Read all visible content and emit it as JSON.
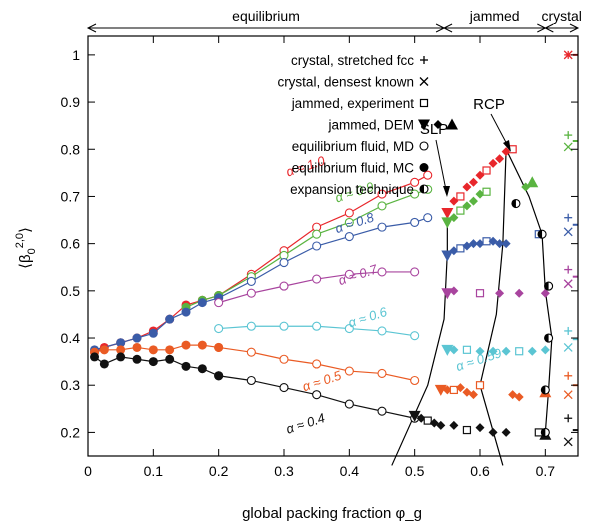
{
  "chart_data": {
    "type": "scatter",
    "title": "",
    "xlabel": "global packing fraction φ_g",
    "ylabel": "⟨β₀^(2,0)⟩",
    "xlim": [
      0,
      0.75
    ],
    "ylim": [
      0.15,
      1.04
    ],
    "xticks": [
      0,
      0.1,
      0.2,
      0.3,
      0.4,
      0.5,
      0.6,
      0.7
    ],
    "xtick_labels": [
      "0",
      "0.1",
      "0.2",
      "0.3",
      "0.4",
      "0.5",
      "0.6",
      "0.7"
    ],
    "yticks": [
      0.2,
      0.3,
      0.4,
      0.5,
      0.6,
      0.7,
      0.8,
      0.9,
      1
    ],
    "ytick_labels": [
      "0.2",
      "0.3",
      "0.4",
      "0.5",
      "0.6",
      "0.7",
      "0.8",
      "0.9",
      "1"
    ],
    "regions": [
      {
        "label": "equilibrium",
        "from": 0,
        "to": 0.545
      },
      {
        "label": "jammed",
        "from": 0.545,
        "to": 0.7
      },
      {
        "label": "crystal",
        "from": 0.7,
        "to": 0.75
      }
    ],
    "legend": [
      {
        "label": "crystal, stretched fcc",
        "symbol": "+"
      },
      {
        "label": "crystal, densest known",
        "symbol": "×"
      },
      {
        "label": "jammed, experiment",
        "symbol": "□"
      },
      {
        "label": "jammed, DEM",
        "symbol": "▼◆▲"
      },
      {
        "label": "equilibrium fluid, MD",
        "symbol": "○"
      },
      {
        "label": "equilibrium fluid, MC",
        "symbol": "●"
      },
      {
        "label": "expansion technique",
        "symbol": "◐"
      }
    ],
    "annotations": [
      "SLP",
      "RCP"
    ],
    "series": [
      {
        "name": "α ≈ 1.0",
        "color": "#e8262b",
        "mc": [
          [
            0.01,
            0.37
          ],
          [
            0.025,
            0.38
          ],
          [
            0.05,
            0.39
          ],
          [
            0.075,
            0.4
          ],
          [
            0.1,
            0.415
          ],
          [
            0.125,
            0.44
          ],
          [
            0.15,
            0.47
          ],
          [
            0.175,
            0.48
          ],
          [
            0.2,
            0.49
          ]
        ],
        "md": [
          [
            0.2,
            0.49
          ],
          [
            0.25,
            0.535
          ],
          [
            0.3,
            0.585
          ],
          [
            0.35,
            0.635
          ],
          [
            0.4,
            0.665
          ],
          [
            0.45,
            0.705
          ],
          [
            0.5,
            0.73
          ],
          [
            0.52,
            0.745
          ]
        ],
        "jammed": [
          [
            0.55,
            0.665
          ],
          [
            0.56,
            0.69
          ],
          [
            0.57,
            0.7
          ],
          [
            0.58,
            0.72
          ],
          [
            0.59,
            0.73
          ],
          [
            0.6,
            0.745
          ],
          [
            0.61,
            0.755
          ],
          [
            0.62,
            0.77
          ],
          [
            0.63,
            0.78
          ],
          [
            0.64,
            0.795
          ],
          [
            0.65,
            0.8
          ]
        ],
        "crystal_plus": 1.0,
        "crystal_x": 1.0
      },
      {
        "name": "α ≈ 0.9",
        "color": "#5ab441",
        "mc": [
          [
            0.15,
            0.465
          ],
          [
            0.175,
            0.48
          ],
          [
            0.2,
            0.49
          ]
        ],
        "md": [
          [
            0.2,
            0.49
          ],
          [
            0.25,
            0.53
          ],
          [
            0.3,
            0.575
          ],
          [
            0.35,
            0.62
          ],
          [
            0.4,
            0.645
          ],
          [
            0.45,
            0.68
          ],
          [
            0.5,
            0.705
          ],
          [
            0.52,
            0.715
          ]
        ],
        "jammed": [
          [
            0.55,
            0.645
          ],
          [
            0.56,
            0.655
          ],
          [
            0.57,
            0.67
          ],
          [
            0.58,
            0.68
          ],
          [
            0.59,
            0.69
          ],
          [
            0.6,
            0.705
          ],
          [
            0.61,
            0.71
          ],
          [
            0.67,
            0.72
          ],
          [
            0.68,
            0.73
          ]
        ],
        "crystal_plus": 0.83,
        "crystal_x": 0.805
      },
      {
        "name": "α ≈ 0.8",
        "color": "#3a5ca8",
        "mc": [
          [
            0.01,
            0.375
          ],
          [
            0.05,
            0.39
          ],
          [
            0.075,
            0.4
          ],
          [
            0.1,
            0.41
          ],
          [
            0.125,
            0.44
          ],
          [
            0.15,
            0.455
          ],
          [
            0.175,
            0.475
          ],
          [
            0.2,
            0.485
          ]
        ],
        "md": [
          [
            0.2,
            0.485
          ],
          [
            0.25,
            0.52
          ],
          [
            0.3,
            0.56
          ],
          [
            0.35,
            0.595
          ],
          [
            0.4,
            0.615
          ],
          [
            0.45,
            0.635
          ],
          [
            0.5,
            0.645
          ],
          [
            0.52,
            0.655
          ]
        ],
        "jammed": [
          [
            0.55,
            0.575
          ],
          [
            0.56,
            0.585
          ],
          [
            0.57,
            0.59
          ],
          [
            0.58,
            0.595
          ],
          [
            0.59,
            0.6
          ],
          [
            0.6,
            0.6
          ],
          [
            0.61,
            0.605
          ],
          [
            0.62,
            0.605
          ],
          [
            0.63,
            0.6
          ],
          [
            0.64,
            0.6
          ],
          [
            0.69,
            0.62
          ]
        ],
        "crystal_plus": 0.655,
        "crystal_x": 0.625
      },
      {
        "name": "α ≈ 0.7",
        "color": "#a8449e",
        "md": [
          [
            0.2,
            0.475
          ],
          [
            0.25,
            0.495
          ],
          [
            0.3,
            0.51
          ],
          [
            0.35,
            0.525
          ],
          [
            0.4,
            0.535
          ],
          [
            0.45,
            0.54
          ],
          [
            0.5,
            0.54
          ]
        ],
        "jammed": [
          [
            0.55,
            0.495
          ],
          [
            0.56,
            0.5
          ],
          [
            0.6,
            0.495
          ],
          [
            0.63,
            0.495
          ],
          [
            0.66,
            0.495
          ],
          [
            0.7,
            0.495
          ]
        ],
        "crystal_plus": 0.545,
        "crystal_x": 0.515
      },
      {
        "name": "α ≈ 0.6",
        "color": "#5bc5d3",
        "md": [
          [
            0.2,
            0.42
          ],
          [
            0.25,
            0.425
          ],
          [
            0.3,
            0.425
          ],
          [
            0.35,
            0.425
          ],
          [
            0.4,
            0.42
          ],
          [
            0.45,
            0.415
          ],
          [
            0.5,
            0.405
          ]
        ],
        "jammed": [
          [
            0.55,
            0.375
          ],
          [
            0.56,
            0.375
          ],
          [
            0.58,
            0.375
          ],
          [
            0.6,
            0.372
          ],
          [
            0.62,
            0.372
          ],
          [
            0.64,
            0.372
          ],
          [
            0.66,
            0.372
          ],
          [
            0.68,
            0.372
          ],
          [
            0.7,
            0.375
          ]
        ],
        "crystal_plus": 0.415,
        "crystal_x": 0.38
      },
      {
        "name": "α ≈ 0.5",
        "color": "#ea5b24",
        "mc": [
          [
            0.01,
            0.37
          ],
          [
            0.025,
            0.375
          ],
          [
            0.05,
            0.375
          ],
          [
            0.075,
            0.38
          ],
          [
            0.1,
            0.375
          ],
          [
            0.125,
            0.375
          ],
          [
            0.15,
            0.385
          ],
          [
            0.175,
            0.385
          ],
          [
            0.2,
            0.38
          ]
        ],
        "md": [
          [
            0.2,
            0.38
          ],
          [
            0.25,
            0.37
          ],
          [
            0.3,
            0.355
          ],
          [
            0.35,
            0.345
          ],
          [
            0.4,
            0.33
          ],
          [
            0.45,
            0.325
          ],
          [
            0.5,
            0.31
          ]
        ],
        "jammed": [
          [
            0.54,
            0.29
          ],
          [
            0.55,
            0.29
          ],
          [
            0.56,
            0.29
          ],
          [
            0.57,
            0.295
          ],
          [
            0.58,
            0.285
          ],
          [
            0.59,
            0.28
          ],
          [
            0.6,
            0.3
          ],
          [
            0.65,
            0.28
          ],
          [
            0.66,
            0.275
          ],
          [
            0.7,
            0.285
          ]
        ],
        "crystal_plus": 0.32,
        "crystal_x": 0.28
      },
      {
        "name": "α ≈ 0.4",
        "color": "#111111",
        "mc": [
          [
            0.01,
            0.36
          ],
          [
            0.025,
            0.345
          ],
          [
            0.05,
            0.36
          ],
          [
            0.075,
            0.355
          ],
          [
            0.1,
            0.35
          ],
          [
            0.125,
            0.355
          ],
          [
            0.15,
            0.34
          ],
          [
            0.175,
            0.335
          ],
          [
            0.2,
            0.32
          ]
        ],
        "md": [
          [
            0.2,
            0.32
          ],
          [
            0.25,
            0.31
          ],
          [
            0.3,
            0.295
          ],
          [
            0.35,
            0.28
          ],
          [
            0.4,
            0.26
          ],
          [
            0.45,
            0.245
          ],
          [
            0.5,
            0.23
          ]
        ],
        "jammed": [
          [
            0.5,
            0.235
          ],
          [
            0.51,
            0.23
          ],
          [
            0.52,
            0.225
          ],
          [
            0.53,
            0.22
          ],
          [
            0.54,
            0.215
          ],
          [
            0.56,
            0.215
          ],
          [
            0.58,
            0.205
          ],
          [
            0.6,
            0.21
          ],
          [
            0.62,
            0.2
          ],
          [
            0.64,
            0.2
          ],
          [
            0.69,
            0.2
          ],
          [
            0.7,
            0.195
          ]
        ],
        "crystal_plus": 0.23,
        "crystal_x": 0.18
      }
    ],
    "series_labels": [
      {
        "text": "α ≈ 1.0",
        "x": 0.335,
        "y": 0.755,
        "color": "#e8262b"
      },
      {
        "text": "α ≈ 0.9",
        "x": 0.41,
        "y": 0.7,
        "color": "#5ab441"
      },
      {
        "text": "α ≈ 0.8",
        "x": 0.41,
        "y": 0.635,
        "color": "#3a5ca8"
      },
      {
        "text": "α ≈ 0.7",
        "x": 0.415,
        "y": 0.525,
        "color": "#a8449e"
      },
      {
        "text": "α ≈ 0.6",
        "x": 0.43,
        "y": 0.435,
        "color": "#5bc5d3"
      },
      {
        "text": "α ≈ 0.59",
        "x": 0.6,
        "y": 0.345,
        "color": "#5bc5d3"
      },
      {
        "text": "α ≈ 0.5",
        "x": 0.36,
        "y": 0.3,
        "color": "#ea5b24"
      },
      {
        "text": "α ≈ 0.4",
        "x": 0.335,
        "y": 0.21,
        "color": "#111111"
      }
    ],
    "boundary_lines": {
      "slp": [
        [
          0.465,
          0.13
        ],
        [
          0.52,
          0.3
        ],
        [
          0.545,
          0.44
        ],
        [
          0.55,
          0.58
        ],
        [
          0.55,
          0.66
        ]
      ],
      "rcp": [
        [
          0.635,
          0.13
        ],
        [
          0.6,
          0.3
        ],
        [
          0.625,
          0.45
        ],
        [
          0.635,
          0.6
        ],
        [
          0.64,
          0.8
        ]
      ],
      "crystal": [
        [
          0.64,
          0.8
        ],
        [
          0.675,
          0.7
        ],
        [
          0.695,
          0.62
        ],
        [
          0.7,
          0.5
        ],
        [
          0.71,
          0.4
        ],
        [
          0.705,
          0.29
        ],
        [
          0.7,
          0.2
        ]
      ]
    }
  }
}
